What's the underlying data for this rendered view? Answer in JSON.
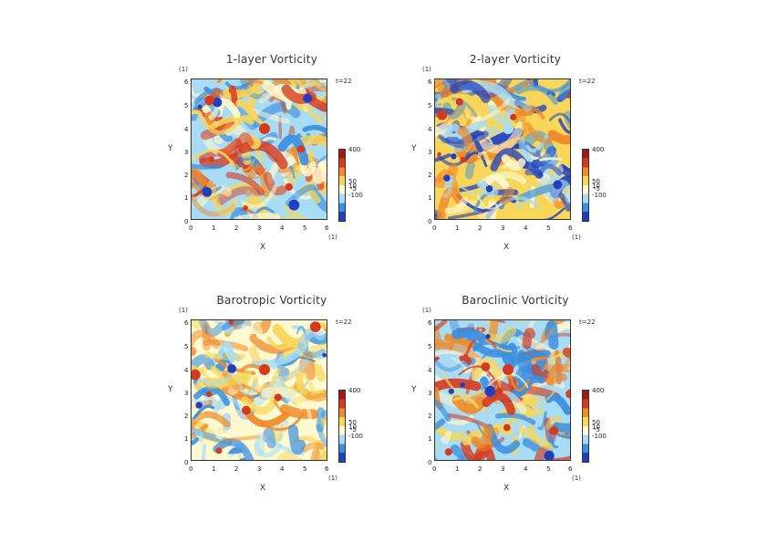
{
  "panels": [
    {
      "title": "1-layer Vorticity",
      "palette": "warm"
    },
    {
      "title": "2-layer Vorticity",
      "palette": "cool"
    },
    {
      "title": "Barotropic Vorticity",
      "palette": "pale"
    },
    {
      "title": "Baroclinic Vorticity",
      "palette": "mixed"
    }
  ],
  "common": {
    "unit": "(1)",
    "time": "t=22",
    "xlabel": "X",
    "ylabel": "Y",
    "yticks": [
      "6",
      "5",
      "4",
      "3",
      "2",
      "1",
      "0"
    ],
    "xticks": [
      "0",
      "1",
      "2",
      "3",
      "4",
      "5",
      "6"
    ],
    "colorbar_labels": [
      "400",
      "50",
      "10",
      "-5",
      "-100"
    ]
  },
  "colors": {
    "deep_blue": "#1f3fbf",
    "blue": "#3b8fe0",
    "light_blue": "#a8dcf5",
    "pale": "#fff9d0",
    "yellow": "#f7d65a",
    "orange": "#f08a2a",
    "red": "#d63a1e",
    "dark_red": "#9e1a12"
  }
}
